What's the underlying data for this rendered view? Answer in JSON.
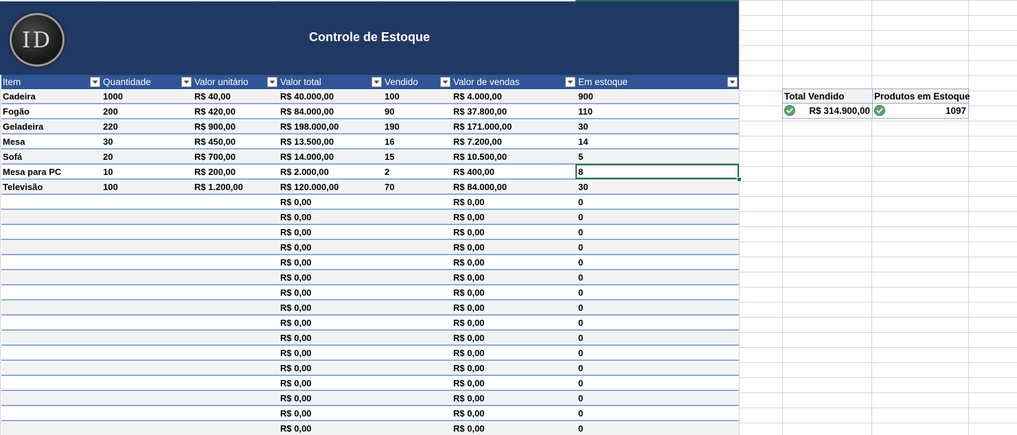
{
  "header": {
    "logo_text": "ID",
    "title": "Controle de Estoque"
  },
  "table": {
    "columns": [
      "Item",
      "Quantidade",
      "Valor unitário",
      "Valor total",
      "Vendido",
      "Valor  de vendas",
      "Em estoque"
    ],
    "rows": [
      [
        "Cadeira",
        "1000",
        "R$ 40,00",
        "R$ 40.000,00",
        "100",
        "R$ 4.000,00",
        "900"
      ],
      [
        "Fogão",
        "200",
        "R$ 420,00",
        "R$ 84.000,00",
        "90",
        "R$ 37.800,00",
        "110"
      ],
      [
        "Geladeira",
        "220",
        "R$ 900,00",
        "R$ 198.000,00",
        "190",
        "R$ 171.000,00",
        "30"
      ],
      [
        "Mesa",
        "30",
        "R$ 450,00",
        "R$ 13.500,00",
        "16",
        "R$ 7.200,00",
        "14"
      ],
      [
        "Sofá",
        "20",
        "R$ 700,00",
        "R$ 14.000,00",
        "15",
        "R$ 10.500,00",
        "5"
      ],
      [
        "Mesa para PC",
        "10",
        "R$ 200,00",
        "R$ 2.000,00",
        "2",
        "R$ 400,00",
        "8"
      ],
      [
        "Televisão",
        "100",
        "R$ 1.200,00",
        "R$ 120.000,00",
        "70",
        "R$ 84.000,00",
        "30"
      ],
      [
        "",
        "",
        "",
        "R$ 0,00",
        "",
        "R$ 0,00",
        "0"
      ],
      [
        "",
        "",
        "",
        "R$ 0,00",
        "",
        "R$ 0,00",
        "0"
      ],
      [
        "",
        "",
        "",
        "R$ 0,00",
        "",
        "R$ 0,00",
        "0"
      ],
      [
        "",
        "",
        "",
        "R$ 0,00",
        "",
        "R$ 0,00",
        "0"
      ],
      [
        "",
        "",
        "",
        "R$ 0,00",
        "",
        "R$ 0,00",
        "0"
      ],
      [
        "",
        "",
        "",
        "R$ 0,00",
        "",
        "R$ 0,00",
        "0"
      ],
      [
        "",
        "",
        "",
        "R$ 0,00",
        "",
        "R$ 0,00",
        "0"
      ],
      [
        "",
        "",
        "",
        "R$ 0,00",
        "",
        "R$ 0,00",
        "0"
      ],
      [
        "",
        "",
        "",
        "R$ 0,00",
        "",
        "R$ 0,00",
        "0"
      ],
      [
        "",
        "",
        "",
        "R$ 0,00",
        "",
        "R$ 0,00",
        "0"
      ],
      [
        "",
        "",
        "",
        "R$ 0,00",
        "",
        "R$ 0,00",
        "0"
      ],
      [
        "",
        "",
        "",
        "R$ 0,00",
        "",
        "R$ 0,00",
        "0"
      ],
      [
        "",
        "",
        "",
        "R$ 0,00",
        "",
        "R$ 0,00",
        "0"
      ],
      [
        "",
        "",
        "",
        "R$ 0,00",
        "",
        "R$ 0,00",
        "0"
      ],
      [
        "",
        "",
        "",
        "R$ 0,00",
        "",
        "R$ 0,00",
        "0"
      ],
      [
        "",
        "",
        "",
        "R$ 0,00",
        "",
        "R$ 0,00",
        "0"
      ]
    ]
  },
  "summary": {
    "total_sold_label": "Total Vendido",
    "in_stock_label": "Produtos em Estoque",
    "total_sold_value": "R$ 314.900,00",
    "in_stock_value": "1097",
    "icon": "check-circle-icon"
  },
  "colors": {
    "banner": "#203864",
    "table_header": "#2f5597",
    "row_border": "#8ea9db",
    "selection": "#217346",
    "check_icon": "#5aa36b"
  }
}
